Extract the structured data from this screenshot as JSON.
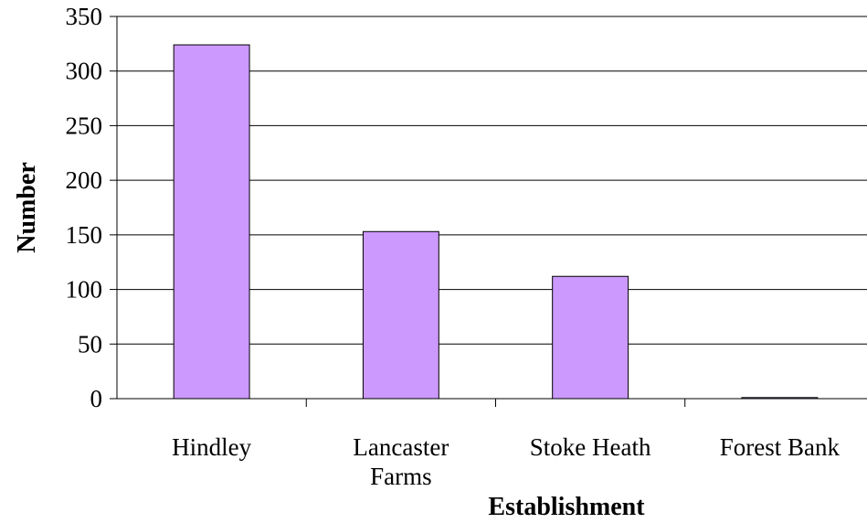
{
  "chart_data": {
    "type": "bar",
    "title": "",
    "xlabel": "Establishment",
    "ylabel": "Number",
    "categories": [
      "Hindley",
      "Lancaster Farms",
      "Stoke Heath",
      "Forest Bank"
    ],
    "category_lines": [
      [
        "Hindley"
      ],
      [
        "Lancaster",
        "Farms"
      ],
      [
        "Stoke Heath"
      ],
      [
        "Forest Bank"
      ]
    ],
    "values": [
      324,
      153,
      112,
      1
    ],
    "ylim": [
      0,
      350
    ],
    "yticks": [
      0,
      50,
      100,
      150,
      200,
      250,
      300,
      350
    ],
    "grid": true,
    "legend": "none",
    "colors": {
      "bar_fill": "#cc99ff",
      "bar_stroke": "#000000",
      "grid": "#000000"
    }
  }
}
